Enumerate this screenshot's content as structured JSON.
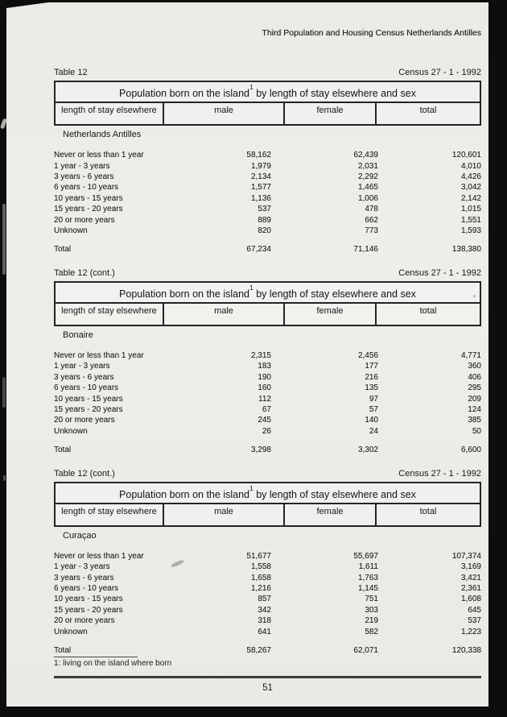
{
  "page": {
    "header": "Third Population and Housing Census Netherlands Antilles",
    "page_number": "51"
  },
  "tables": [
    {
      "caption_left": "Table 12",
      "caption_right": "Census 27 - 1 - 1992",
      "title": {
        "main": "Population born on the island",
        "sup": "1",
        "rest": " by length of stay elsewhere and sex"
      },
      "columns": [
        "length of stay elsewhere",
        "male",
        "female",
        "total"
      ],
      "section": "Netherlands Antilles",
      "rows": [
        {
          "label": "Never or less than 1 year",
          "male": "58,162",
          "female": "62,439",
          "total": "120,601"
        },
        {
          "label": "1 year - 3 years",
          "male": "1,979",
          "female": "2,031",
          "total": "4,010"
        },
        {
          "label": "3 years - 6 years",
          "male": "2,134",
          "female": "2,292",
          "total": "4,426"
        },
        {
          "label": "6 years - 10 years",
          "male": "1,577",
          "female": "1,465",
          "total": "3,042"
        },
        {
          "label": "10 years - 15 years",
          "male": "1,136",
          "female": "1,006",
          "total": "2,142"
        },
        {
          "label": "15 years - 20 years",
          "male": "537",
          "female": "478",
          "total": "1,015"
        },
        {
          "label": "20 or more years",
          "male": "889",
          "female": "662",
          "total": "1,551"
        },
        {
          "label": "Unknown",
          "male": "820",
          "female": "773",
          "total": "1,593"
        }
      ],
      "total": {
        "label": "Total",
        "male": "67,234",
        "female": "71,146",
        "total": "138,380"
      }
    },
    {
      "caption_left": "Table 12 (cont.)",
      "caption_right": "Census 27 - 1 - 1992",
      "title": {
        "main": "Population born on the island",
        "sup": "1",
        "rest": " by length of stay elsewhere and sex"
      },
      "columns": [
        "length of stay elsewhere",
        "male",
        "female",
        "total"
      ],
      "section": "Bonaire",
      "rows": [
        {
          "label": "Never or less than 1 year",
          "male": "2,315",
          "female": "2,456",
          "total": "4,771"
        },
        {
          "label": "1 year - 3 years",
          "male": "183",
          "female": "177",
          "total": "360"
        },
        {
          "label": "3 years - 6 years",
          "male": "190",
          "female": "216",
          "total": "406"
        },
        {
          "label": "6 years - 10 years",
          "male": "160",
          "female": "135",
          "total": "295"
        },
        {
          "label": "10 years - 15 years",
          "male": "112",
          "female": "97",
          "total": "209"
        },
        {
          "label": "15 years - 20 years",
          "male": "67",
          "female": "57",
          "total": "124"
        },
        {
          "label": "20 or more years",
          "male": "245",
          "female": "140",
          "total": "385"
        },
        {
          "label": "Unknown",
          "male": "26",
          "female": "24",
          "total": "50"
        }
      ],
      "total": {
        "label": "Total",
        "male": "3,298",
        "female": "3,302",
        "total": "6,600"
      }
    },
    {
      "caption_left": "Table 12 (cont.)",
      "caption_right": "Census 27 - 1 - 1992",
      "title": {
        "main": "Population born on the island",
        "sup": "1",
        "rest": " by length of stay elsewhere and sex"
      },
      "columns": [
        "length of stay elsewhere",
        "male",
        "female",
        "total"
      ],
      "section": "Curaçao",
      "rows": [
        {
          "label": "Never or less than 1 year",
          "male": "51,677",
          "female": "55,697",
          "total": "107,374"
        },
        {
          "label": "1 year - 3 years",
          "male": "1,558",
          "female": "1,611",
          "total": "3,169"
        },
        {
          "label": "3 years - 6 years",
          "male": "1,658",
          "female": "1,763",
          "total": "3,421"
        },
        {
          "label": "6 years - 10 years",
          "male": "1,216",
          "female": "1,145",
          "total": "2,361"
        },
        {
          "label": "10 years - 15 years",
          "male": "857",
          "female": "751",
          "total": "1,608"
        },
        {
          "label": "15 years - 20 years",
          "male": "342",
          "female": "303",
          "total": "645"
        },
        {
          "label": "20 or more years",
          "male": "318",
          "female": "219",
          "total": "537"
        },
        {
          "label": "Unknown",
          "male": "641",
          "female": "582",
          "total": "1,223"
        }
      ],
      "total": {
        "label": "Total",
        "male": "58,267",
        "female": "62,071",
        "total": "120,338"
      },
      "footnote": "1: living on the island where born"
    }
  ]
}
